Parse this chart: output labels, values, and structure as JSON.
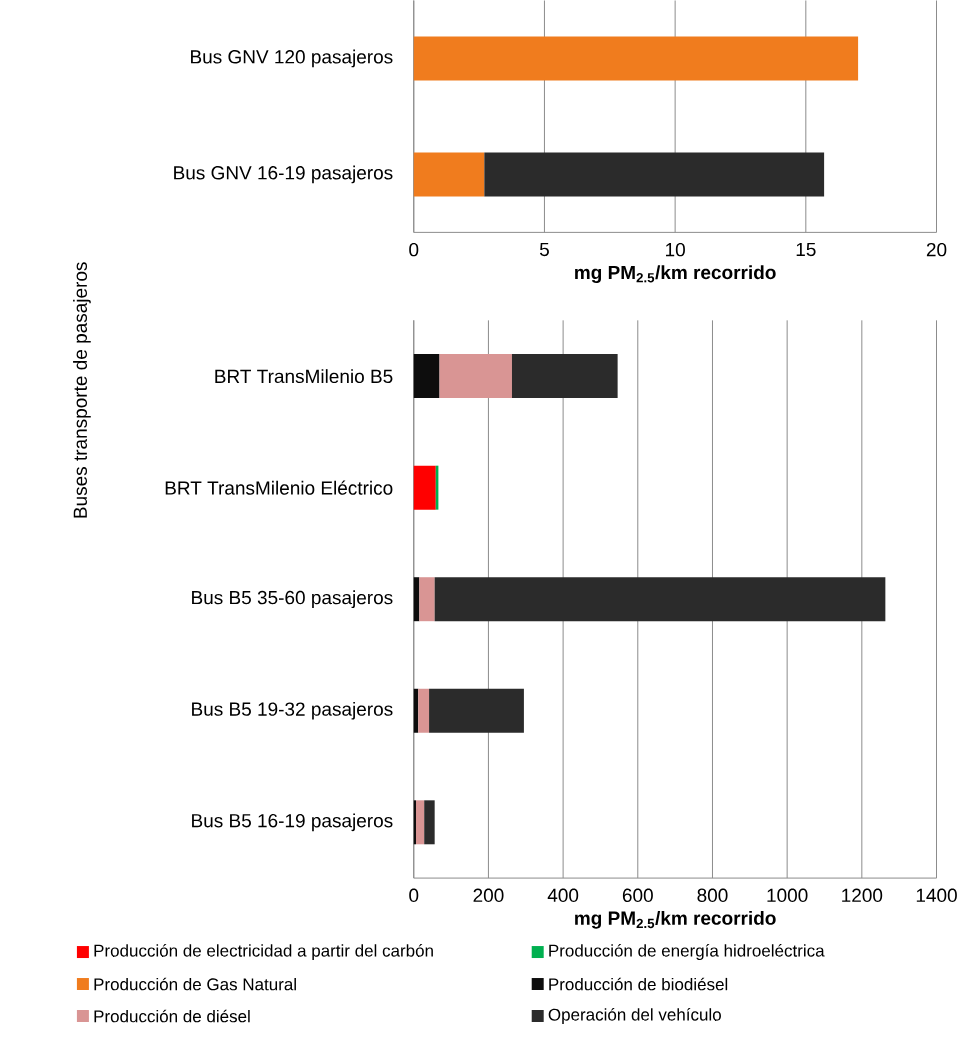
{
  "chart_data": [
    {
      "type": "bar",
      "orientation": "horizontal",
      "stacked": true,
      "grid": "x",
      "xlabel": "mg  PM$_{2.5}$/km recorrido",
      "categories": [
        "Bus GNV 120 pasajeros",
        "Bus GNV 16-19  pasajeros"
      ],
      "series": [
        {
          "name": "Producción de Gas Natural",
          "color": "#f07c1e",
          "values": [
            17.0,
            2.7
          ]
        },
        {
          "color": "#2b2b2b",
          "values": [
            null,
            13.0
          ]
        }
      ],
      "xlim": [
        0,
        20
      ],
      "xticks": [
        0,
        5,
        10,
        15,
        20
      ]
    },
    {
      "type": "bar",
      "orientation": "horizontal",
      "stacked": true,
      "grid": "x",
      "xlabel": "mg  PM$_{2.5}$/km recorrido",
      "ylabel": "Buses transporte de pasajeros",
      "legend": "bottom",
      "categories": [
        "BRT TransMilenio B5",
        "BRT TransMilenio Eléctrico",
        "Bus B5 35-60 pasajeros",
        "Bus B5 19-32  pasajeros",
        "Bus B5 16-19  pasajeros"
      ],
      "series": [
        {
          "name": "Producción de electricidad a partir del carbón",
          "color": "#ff0000",
          "values": [
            null,
            59,
            null,
            null,
            null
          ]
        },
        {
          "name": "Producción de energía hidroeléctrica",
          "color": "#00b050",
          "values": [
            null,
            7,
            null,
            null,
            null
          ]
        },
        {
          "name": "Producción de biodiésel",
          "color": "#0d0d0d",
          "values": [
            69,
            null,
            15,
            12,
            6
          ]
        },
        {
          "name": "Producción de diésel",
          "color": "#d99594",
          "values": [
            194,
            null,
            41,
            29,
            22
          ]
        },
        {
          "name": "Operación del vehículo",
          "color": "#2b2b2b",
          "values": [
            283,
            null,
            1207,
            254,
            28
          ]
        }
      ],
      "xlim": [
        0,
        1400
      ],
      "xticks": [
        0,
        200,
        400,
        600,
        800,
        1000,
        1200,
        1400
      ]
    }
  ]
}
